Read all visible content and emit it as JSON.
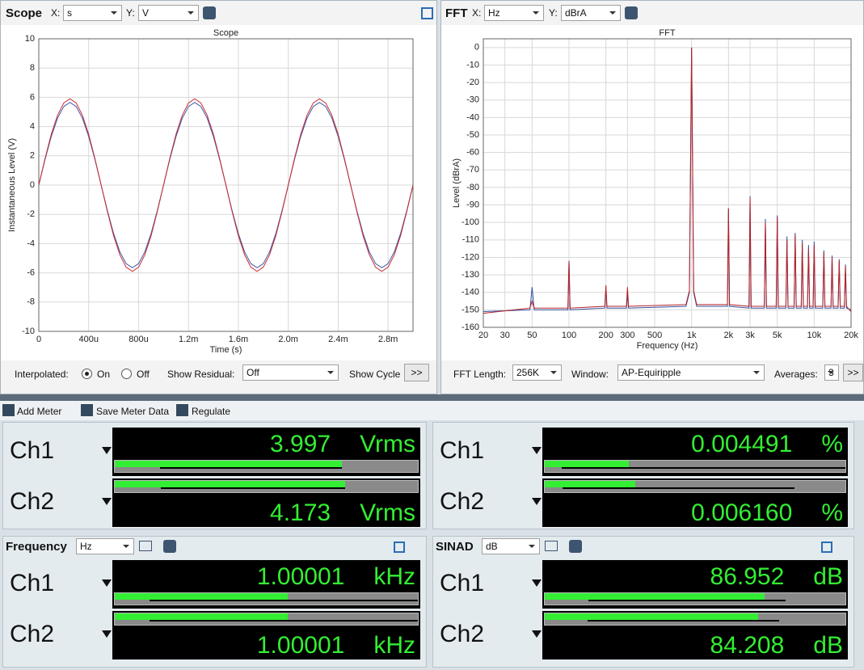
{
  "scope": {
    "title": "Scope",
    "x_label": "X:",
    "x_unit": "s",
    "y_label": "Y:",
    "y_unit": "V",
    "chart": {
      "type": "line",
      "title": "Scope",
      "xlabel": "Time (s)",
      "ylabel": "Instantaneous Level (V)",
      "xlim": [
        0,
        0.003
      ],
      "ylim": [
        -10,
        10
      ],
      "xticks": [
        0,
        {
          "value": 0.0004,
          "label": "400u"
        },
        {
          "value": 0.0008,
          "label": "800u"
        },
        {
          "value": 0.0012,
          "label": "1.2m"
        },
        {
          "value": 0.0016,
          "label": "1.6m"
        },
        {
          "value": 0.002,
          "label": "2.0m"
        },
        {
          "value": 0.0024,
          "label": "2.4m"
        },
        {
          "value": 0.0028,
          "label": "2.8m"
        }
      ],
      "yticks": [
        -10,
        -8,
        -6,
        -4,
        -2,
        0,
        2,
        4,
        6,
        8,
        10
      ],
      "grid": true,
      "x": [
        0,
        5e-05,
        0.0001,
        0.00015,
        0.0002,
        0.00025,
        0.0003,
        0.00035,
        0.0004,
        0.00045,
        0.0005,
        0.00055,
        0.0006,
        0.00065,
        0.0007,
        0.00075,
        0.0008,
        0.00085,
        0.0009,
        0.00095,
        0.001,
        0.00105,
        0.0011,
        0.00115,
        0.0012,
        0.00125,
        0.0013,
        0.00135,
        0.0014,
        0.00145,
        0.0015,
        0.00155,
        0.0016,
        0.00165,
        0.0017,
        0.00175,
        0.0018,
        0.00185,
        0.0019,
        0.00195,
        0.002,
        0.00205,
        0.0021,
        0.00215,
        0.0022,
        0.00225,
        0.0023,
        0.00235,
        0.0024,
        0.00245,
        0.0025,
        0.00255,
        0.0026,
        0.00265,
        0.0027,
        0.00275,
        0.0028,
        0.00285,
        0.0029,
        0.00295,
        0.003
      ],
      "series": [
        {
          "color": "#3a56a6",
          "values": [
            0,
            1.75,
            3.32,
            4.57,
            5.37,
            5.65,
            5.37,
            4.57,
            3.32,
            1.75,
            0,
            -1.75,
            -3.32,
            -4.57,
            -5.37,
            -5.65,
            -5.37,
            -4.57,
            -3.32,
            -1.75,
            0,
            1.75,
            3.32,
            4.57,
            5.37,
            5.65,
            5.37,
            4.57,
            3.32,
            1.75,
            0,
            -1.75,
            -3.32,
            -4.57,
            -5.37,
            -5.65,
            -5.37,
            -4.57,
            -3.32,
            -1.75,
            0,
            1.75,
            3.32,
            4.57,
            5.37,
            5.65,
            5.37,
            4.57,
            3.32,
            1.75,
            0,
            -1.75,
            -3.32,
            -4.57,
            -5.37,
            -5.65,
            -5.37,
            -4.57,
            -3.32,
            -1.75,
            0
          ]
        },
        {
          "color": "#cc2a30",
          "values": [
            0,
            1.82,
            3.47,
            4.77,
            5.61,
            5.9,
            5.61,
            4.77,
            3.47,
            1.82,
            0,
            -1.82,
            -3.47,
            -4.77,
            -5.61,
            -5.9,
            -5.61,
            -4.77,
            -3.47,
            -1.82,
            0,
            1.82,
            3.47,
            4.77,
            5.61,
            5.9,
            5.61,
            4.77,
            3.47,
            1.82,
            0,
            -1.82,
            -3.47,
            -4.77,
            -5.61,
            -5.9,
            -5.61,
            -4.77,
            -3.47,
            -1.82,
            0,
            1.82,
            3.47,
            4.77,
            5.61,
            5.9,
            5.61,
            4.77,
            3.47,
            1.82,
            0,
            -1.82,
            -3.47,
            -4.77,
            -5.61,
            -5.9,
            -5.61,
            -4.77,
            -3.47,
            -1.82,
            0
          ]
        }
      ]
    },
    "controls": {
      "interpolated": "Interpolated:",
      "on": "On",
      "off": "Off",
      "show_residual": "Show Residual:",
      "residual_value": "Off",
      "show_cycle": "Show Cycle",
      "more": ">>"
    }
  },
  "fft": {
    "title": "FFT",
    "x_label": "X:",
    "x_unit": "Hz",
    "y_label": "Y:",
    "y_unit": "dBrA",
    "chart": {
      "type": "line",
      "title": "FFT",
      "xlabel": "Frequency (Hz)",
      "ylabel": "Level (dBrA)",
      "xscale": "log",
      "xlim": [
        20,
        20000
      ],
      "ylim": [
        -160,
        5
      ],
      "xticks": [
        20,
        30,
        50,
        100,
        200,
        300,
        500,
        {
          "value": 1000,
          "label": "1k"
        },
        {
          "value": 2000,
          "label": "2k"
        },
        {
          "value": 3000,
          "label": "3k"
        },
        {
          "value": 5000,
          "label": "5k"
        },
        {
          "value": 10000,
          "label": "10k"
        },
        {
          "value": 20000,
          "label": "20k"
        }
      ],
      "yticks": [
        -160,
        -150,
        -140,
        -130,
        -120,
        -110,
        -100,
        -90,
        -80,
        -70,
        -60,
        -50,
        -40,
        -30,
        -20,
        -10,
        0
      ],
      "grid": true,
      "x": [
        20,
        48,
        50,
        52,
        98,
        100,
        102,
        196,
        200,
        204,
        294,
        300,
        306,
        900,
        960,
        1000,
        1040,
        1100,
        1960,
        2000,
        2040,
        2940,
        3000,
        3060,
        3920,
        4000,
        4080,
        4900,
        5000,
        5100,
        5880,
        6000,
        6120,
        6860,
        7000,
        7140,
        7840,
        8000,
        8160,
        8820,
        9000,
        9180,
        9800,
        10000,
        10200,
        11760,
        12000,
        12240,
        13720,
        14000,
        14280,
        15680,
        16000,
        16320,
        17640,
        18000,
        18360,
        20000
      ],
      "series": [
        {
          "color": "#2f4f9e",
          "values": [
            -151,
            -150,
            -137,
            -150,
            -150,
            -122,
            -150,
            -149,
            -138,
            -149,
            -149,
            -141,
            -149,
            -148,
            -140,
            0,
            -140,
            -148,
            -148,
            -92,
            -148,
            -149,
            -85,
            -149,
            -149,
            -98,
            -149,
            -149,
            -96,
            -149,
            -149,
            -108,
            -149,
            -149,
            -106,
            -149,
            -149,
            -110,
            -149,
            -149,
            -113,
            -149,
            -149,
            -111,
            -149,
            -149,
            -116,
            -149,
            -149,
            -119,
            -149,
            -149,
            -121,
            -149,
            -149,
            -124,
            -149,
            -150
          ]
        },
        {
          "color": "#b52025",
          "values": [
            -152,
            -149,
            -145,
            -149,
            -149,
            -122,
            -149,
            -148,
            -136,
            -148,
            -148,
            -137,
            -148,
            -147,
            -139,
            0,
            -139,
            -147,
            -147,
            -92,
            -147,
            -148,
            -86,
            -148,
            -148,
            -100,
            -148,
            -148,
            -97,
            -148,
            -148,
            -110,
            -148,
            -148,
            -107,
            -148,
            -148,
            -112,
            -148,
            -148,
            -115,
            -148,
            -148,
            -113,
            -148,
            -148,
            -117,
            -148,
            -148,
            -120,
            -148,
            -148,
            -122,
            -148,
            -148,
            -125,
            -148,
            -151
          ]
        }
      ]
    },
    "controls": {
      "fft_length": "FFT Length:",
      "fft_length_value": "256K",
      "window": "Window:",
      "window_value": "AP-Equiripple",
      "averages": "Averages:",
      "averages_value": "3",
      "more": ">>"
    }
  },
  "meter_toolbar": {
    "add": "Add Meter",
    "save": "Save Meter Data",
    "regulate": "Regulate"
  },
  "meters": [
    {
      "channels": [
        {
          "name": "Ch1",
          "value": "3.997",
          "unit": "Vrms"
        },
        {
          "name": "Ch2",
          "value": "4.173",
          "unit": "Vrms"
        }
      ]
    },
    {
      "channels": [
        {
          "name": "Ch1",
          "value": "0.004491",
          "unit": "%"
        },
        {
          "name": "Ch2",
          "value": "0.006160",
          "unit": "%"
        }
      ]
    },
    {
      "title": "Frequency",
      "unit_select": "Hz",
      "channels": [
        {
          "name": "Ch1",
          "value": "1.00001",
          "unit": "kHz"
        },
        {
          "name": "Ch2",
          "value": "1.00001",
          "unit": "kHz"
        }
      ]
    },
    {
      "title": "SINAD",
      "unit_select": "dB",
      "channels": [
        {
          "name": "Ch1",
          "value": "86.952",
          "unit": "dB"
        },
        {
          "name": "Ch2",
          "value": "84.208",
          "unit": "dB"
        }
      ]
    }
  ]
}
